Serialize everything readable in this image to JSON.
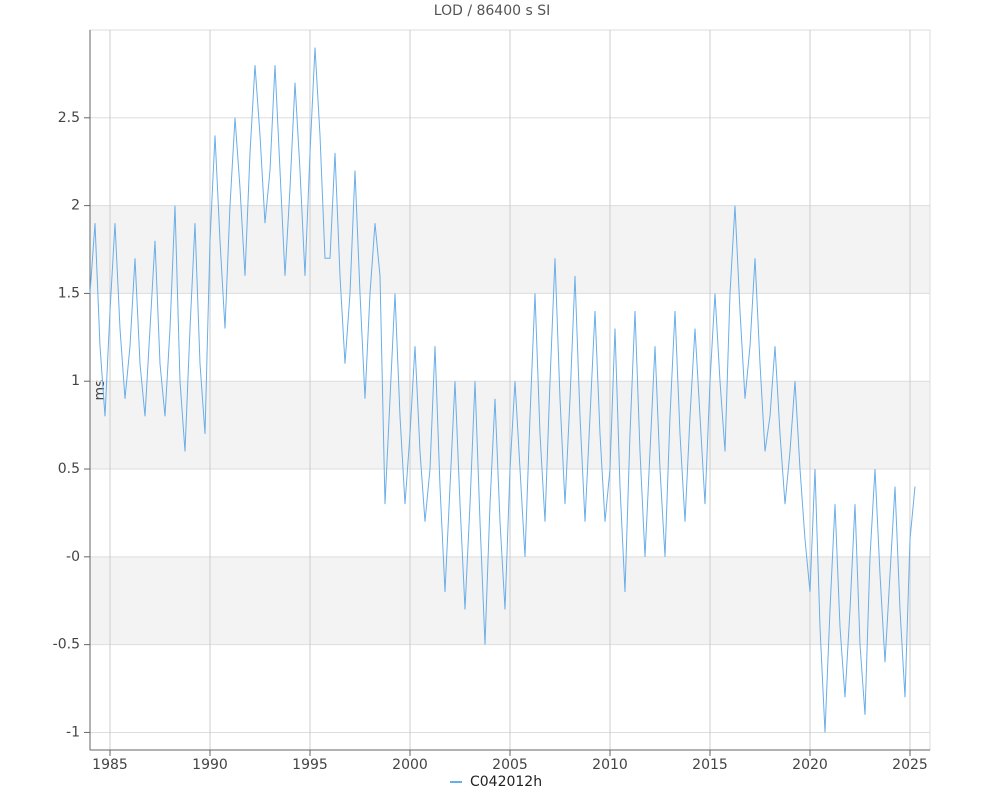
{
  "chart_data": {
    "type": "line",
    "title": "LOD / 86400 s SI",
    "y_label": "ms",
    "x": [
      1984,
      1984.25,
      1984.5,
      1984.75,
      1985,
      1985.25,
      1985.5,
      1985.75,
      1986,
      1986.25,
      1986.5,
      1986.75,
      1987,
      1987.25,
      1987.5,
      1987.75,
      1988,
      1988.25,
      1988.5,
      1988.75,
      1989,
      1989.25,
      1989.5,
      1989.75,
      1990,
      1990.25,
      1990.5,
      1990.75,
      1991,
      1991.25,
      1991.5,
      1991.75,
      1992,
      1992.25,
      1992.5,
      1992.75,
      1993,
      1993.25,
      1993.5,
      1993.75,
      1994,
      1994.25,
      1994.5,
      1994.75,
      1995,
      1995.25,
      1995.5,
      1995.75,
      1996,
      1996.25,
      1996.5,
      1996.75,
      1997,
      1997.25,
      1997.5,
      1997.75,
      1998,
      1998.25,
      1998.5,
      1998.75,
      1999,
      1999.25,
      1999.5,
      1999.75,
      2000,
      2000.25,
      2000.5,
      2000.75,
      2001,
      2001.25,
      2001.5,
      2001.75,
      2002,
      2002.25,
      2002.5,
      2002.75,
      2003,
      2003.25,
      2003.5,
      2003.75,
      2004,
      2004.25,
      2004.5,
      2004.75,
      2005,
      2005.25,
      2005.5,
      2005.75,
      2006,
      2006.25,
      2006.5,
      2006.75,
      2007,
      2007.25,
      2007.5,
      2007.75,
      2008,
      2008.25,
      2008.5,
      2008.75,
      2009,
      2009.25,
      2009.5,
      2009.75,
      2010,
      2010.25,
      2010.5,
      2010.75,
      2011,
      2011.25,
      2011.5,
      2011.75,
      2012,
      2012.25,
      2012.5,
      2012.75,
      2013,
      2013.25,
      2013.5,
      2013.75,
      2014,
      2014.25,
      2014.5,
      2014.75,
      2015,
      2015.25,
      2015.5,
      2015.75,
      2016,
      2016.25,
      2016.5,
      2016.75,
      2017,
      2017.25,
      2017.5,
      2017.75,
      2018,
      2018.25,
      2018.5,
      2018.75,
      2019,
      2019.25,
      2019.5,
      2019.75,
      2020,
      2020.25,
      2020.5,
      2020.75,
      2021,
      2021.25,
      2021.5,
      2021.75,
      2022,
      2022.25,
      2022.5,
      2022.75,
      2023,
      2023.25,
      2023.5,
      2023.75,
      2024,
      2024.25,
      2024.5,
      2024.75,
      2025,
      2025.25
    ],
    "series": [
      {
        "name": "C042012h",
        "color": "#6aaee8",
        "values": [
          1.5,
          1.9,
          1.2,
          0.8,
          1.4,
          1.9,
          1.3,
          0.9,
          1.2,
          1.7,
          1.1,
          0.8,
          1.3,
          1.8,
          1.1,
          0.8,
          1.3,
          2.0,
          1.0,
          0.6,
          1.3,
          1.9,
          1.1,
          0.7,
          1.8,
          2.4,
          1.8,
          1.3,
          2.0,
          2.5,
          2.1,
          1.6,
          2.3,
          2.8,
          2.4,
          1.9,
          2.2,
          2.8,
          2.2,
          1.6,
          2.1,
          2.7,
          2.2,
          1.6,
          2.3,
          2.9,
          2.4,
          1.7,
          1.7,
          2.3,
          1.6,
          1.1,
          1.5,
          2.2,
          1.5,
          0.9,
          1.5,
          1.9,
          1.6,
          0.3,
          0.9,
          1.5,
          0.8,
          0.3,
          0.7,
          1.2,
          0.6,
          0.2,
          0.5,
          1.2,
          0.4,
          -0.2,
          0.4,
          1.0,
          0.3,
          -0.3,
          0.3,
          1.0,
          0.2,
          -0.5,
          0.3,
          0.9,
          0.2,
          -0.3,
          0.5,
          1.0,
          0.5,
          0.0,
          0.8,
          1.5,
          0.7,
          0.2,
          1.0,
          1.7,
          0.9,
          0.3,
          0.9,
          1.6,
          0.8,
          0.2,
          0.8,
          1.4,
          0.7,
          0.2,
          0.5,
          1.3,
          0.4,
          -0.2,
          0.7,
          1.4,
          0.6,
          0.0,
          0.6,
          1.2,
          0.5,
          0.0,
          0.8,
          1.4,
          0.7,
          0.2,
          0.8,
          1.3,
          0.8,
          0.3,
          1.0,
          1.5,
          1.0,
          0.6,
          1.5,
          2.0,
          1.4,
          0.9,
          1.2,
          1.7,
          1.1,
          0.6,
          0.8,
          1.2,
          0.7,
          0.3,
          0.6,
          1.0,
          0.5,
          0.1,
          -0.2,
          0.5,
          -0.4,
          -1.0,
          -0.3,
          0.3,
          -0.4,
          -0.8,
          -0.3,
          0.3,
          -0.5,
          -0.9,
          0.0,
          0.5,
          -0.1,
          -0.6,
          -0.1,
          0.4,
          -0.3,
          -0.8,
          0.1,
          0.4
        ]
      }
    ],
    "xlim": [
      1984,
      2026
    ],
    "xticks": [
      1985,
      1990,
      1995,
      2000,
      2005,
      2010,
      2015,
      2020,
      2025
    ],
    "ylim": [
      -1.1,
      3.0
    ],
    "yticks": [
      -1,
      -0.5,
      {
        "value": 0,
        "label": "-0"
      },
      0.5,
      1,
      1.5,
      2,
      2.5
    ],
    "grid": true,
    "bands": true
  }
}
